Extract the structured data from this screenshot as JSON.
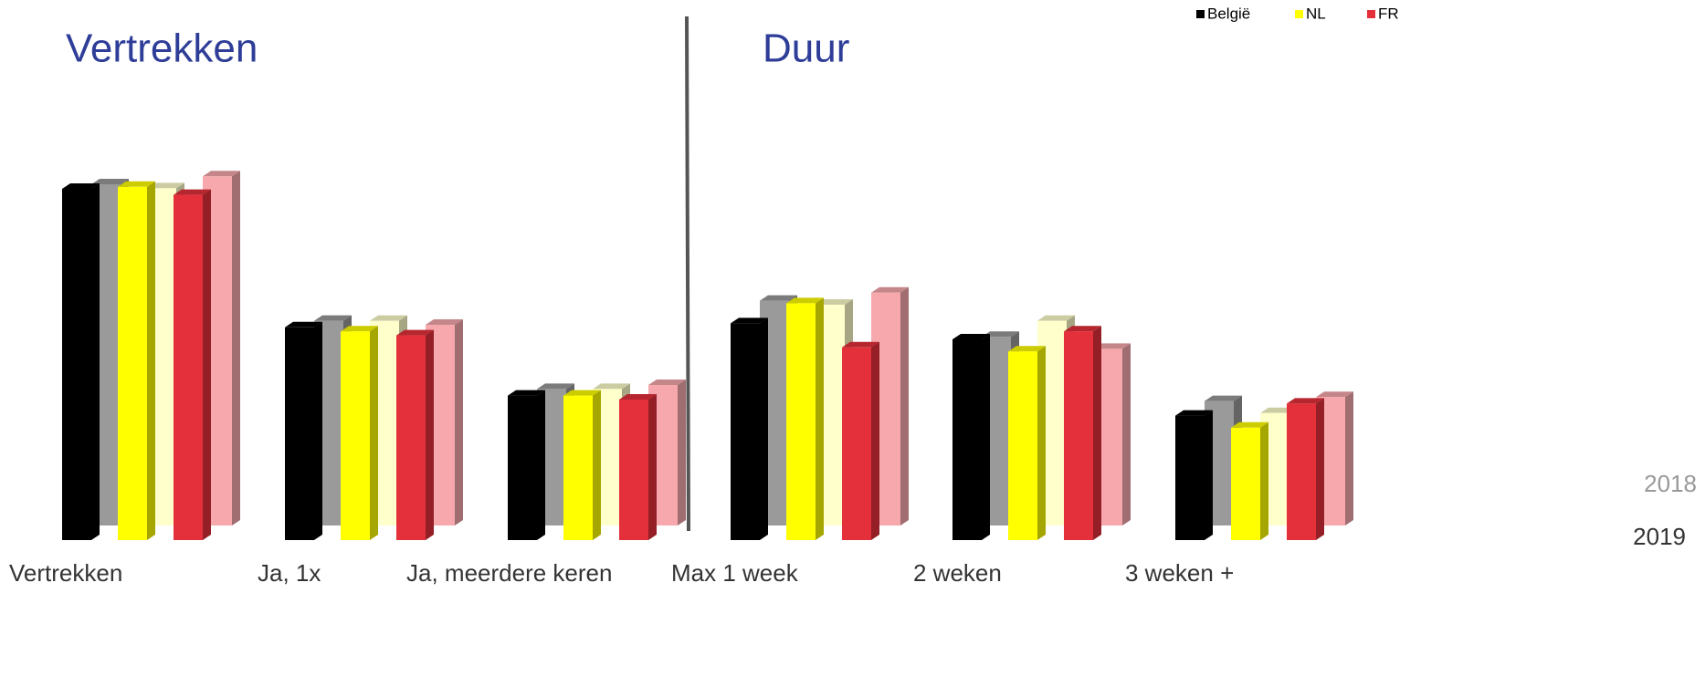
{
  "chart_data": {
    "type": "bar3d",
    "titles": [
      "Vertrekken",
      "Duur"
    ],
    "categories": [
      "Vertrekken",
      "Ja, 1x",
      "Ja, meerdere keren",
      "Max 1 week",
      "2 weken",
      "3 weken +"
    ],
    "years": [
      "2019",
      "2018"
    ],
    "series": [
      {
        "name": "België",
        "colors": [
          "#000000",
          "#9a9a9a"
        ],
        "values": [
          [
            87.5,
            53,
            36,
            54,
            50,
            31
          ],
          [
            85,
            51,
            34,
            56,
            47,
            31
          ]
        ]
      },
      {
        "name": "NL",
        "colors": [
          "#ffff00",
          "#ffffcc"
        ],
        "values": [
          [
            88,
            52,
            36,
            59,
            47,
            28
          ],
          [
            84,
            51,
            34,
            55,
            51,
            28
          ]
        ]
      },
      {
        "name": "FR",
        "colors": [
          "#e3303a",
          "#f6a8ad"
        ],
        "values": [
          [
            86,
            51,
            35,
            48,
            52,
            34
          ],
          [
            87,
            50,
            35,
            58,
            44,
            32
          ]
        ]
      }
    ]
  }
}
